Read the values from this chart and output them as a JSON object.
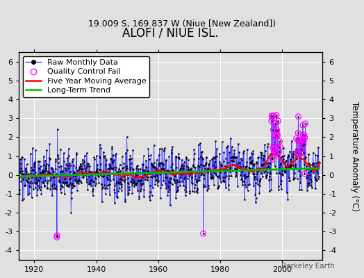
{
  "title": "ALOFI / NIUE ISL.",
  "subtitle": "19.009 S, 169.837 W (Niue [New Zealand])",
  "ylabel": "Temperature Anomaly (°C)",
  "watermark": "Berkeley Earth",
  "year_start": 1910,
  "year_end": 2012,
  "ylim": [
    -4.5,
    6.5
  ],
  "yticks": [
    -4,
    -3,
    -2,
    -1,
    0,
    1,
    2,
    3,
    4,
    5,
    6
  ],
  "bg_color": "#e0e0e0",
  "seed": 42,
  "raw_line_color": "#4444ff",
  "raw_dot_color": "#000000",
  "qc_color": "#ff00ff",
  "ma_color": "#ff0000",
  "trend_color": "#00bb00",
  "grid_color": "#ffffff",
  "title_fontsize": 12,
  "subtitle_fontsize": 9,
  "legend_fontsize": 8
}
